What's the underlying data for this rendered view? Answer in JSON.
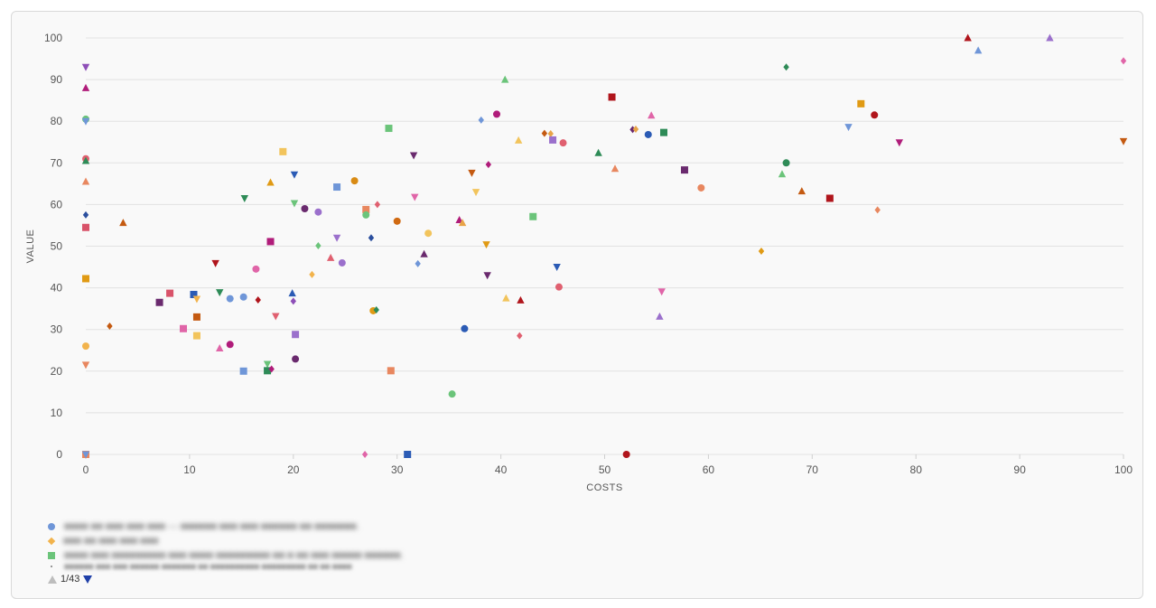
{
  "chart_data": {
    "type": "scatter",
    "xlabel": "COSTS",
    "ylabel": "VALUE",
    "xlim": [
      0,
      100
    ],
    "ylim": [
      0,
      100
    ],
    "xticks": [
      0,
      10,
      20,
      30,
      40,
      50,
      60,
      70,
      80,
      90,
      100
    ],
    "yticks": [
      0,
      10,
      20,
      30,
      40,
      50,
      60,
      70,
      80,
      90,
      100
    ],
    "grid": "horizontal",
    "legend_position": "bottom-left",
    "points": [
      {
        "x": 0,
        "y": 93,
        "shape": "triangle-down",
        "color": "#8e4fb8"
      },
      {
        "x": 0,
        "y": 88,
        "shape": "triangle-up",
        "color": "#b01c7a"
      },
      {
        "x": 0,
        "y": 80.5,
        "shape": "circle",
        "color": "#6bc47a"
      },
      {
        "x": 0,
        "y": 80,
        "shape": "triangle-down",
        "color": "#6f96d8"
      },
      {
        "x": 0,
        "y": 71,
        "shape": "circle",
        "color": "#e06070"
      },
      {
        "x": 0,
        "y": 70.5,
        "shape": "triangle-up",
        "color": "#2e8b57"
      },
      {
        "x": 0,
        "y": 65.5,
        "shape": "triangle-up",
        "color": "#e8875f"
      },
      {
        "x": 0,
        "y": 57.5,
        "shape": "diamond",
        "color": "#2b4f9e"
      },
      {
        "x": 0,
        "y": 54.5,
        "shape": "square",
        "color": "#d9536a"
      },
      {
        "x": 0,
        "y": 42.2,
        "shape": "square",
        "color": "#e09a14"
      },
      {
        "x": 0,
        "y": 26,
        "shape": "circle",
        "color": "#f2b34c"
      },
      {
        "x": 0,
        "y": 21.5,
        "shape": "triangle-down",
        "color": "#e8875f"
      },
      {
        "x": 0,
        "y": 0,
        "shape": "square",
        "color": "#e8875f"
      },
      {
        "x": 0,
        "y": 0,
        "shape": "triangle-down",
        "color": "#6f96d8"
      },
      {
        "x": 2.3,
        "y": 30.8,
        "shape": "diamond",
        "color": "#c45a11"
      },
      {
        "x": 3.6,
        "y": 55.6,
        "shape": "triangle-up",
        "color": "#c45a11"
      },
      {
        "x": 7.1,
        "y": 36.5,
        "shape": "square",
        "color": "#6a2a6e"
      },
      {
        "x": 8.1,
        "y": 38.7,
        "shape": "square",
        "color": "#d9536a"
      },
      {
        "x": 9.4,
        "y": 30.2,
        "shape": "square",
        "color": "#e065a8"
      },
      {
        "x": 10.4,
        "y": 38.4,
        "shape": "square",
        "color": "#2b5bb5"
      },
      {
        "x": 10.7,
        "y": 37.3,
        "shape": "triangle-down",
        "color": "#f2b34c"
      },
      {
        "x": 10.7,
        "y": 33,
        "shape": "square",
        "color": "#c45a11"
      },
      {
        "x": 10.7,
        "y": 28.5,
        "shape": "square",
        "color": "#f2c45c"
      },
      {
        "x": 12.5,
        "y": 45.9,
        "shape": "triangle-down",
        "color": "#b0151c"
      },
      {
        "x": 12.9,
        "y": 25.5,
        "shape": "triangle-up",
        "color": "#e065a8"
      },
      {
        "x": 12.9,
        "y": 38.9,
        "shape": "triangle-down",
        "color": "#2e8b57"
      },
      {
        "x": 13.9,
        "y": 37.4,
        "shape": "circle",
        "color": "#6f96d8"
      },
      {
        "x": 13.9,
        "y": 26.4,
        "shape": "circle",
        "color": "#b01c7a"
      },
      {
        "x": 15.2,
        "y": 37.8,
        "shape": "circle",
        "color": "#6f96d8"
      },
      {
        "x": 15.2,
        "y": 20,
        "shape": "square",
        "color": "#6f96d8"
      },
      {
        "x": 15.3,
        "y": 61.5,
        "shape": "triangle-down",
        "color": "#2e8b57"
      },
      {
        "x": 16.4,
        "y": 44.5,
        "shape": "circle",
        "color": "#e065a8"
      },
      {
        "x": 16.6,
        "y": 37.1,
        "shape": "diamond",
        "color": "#b0151c"
      },
      {
        "x": 17.5,
        "y": 21.7,
        "shape": "triangle-down",
        "color": "#6bc47a"
      },
      {
        "x": 17.5,
        "y": 20.1,
        "shape": "square",
        "color": "#2e8b57"
      },
      {
        "x": 17.9,
        "y": 20.5,
        "shape": "diamond",
        "color": "#b01c7a"
      },
      {
        "x": 17.8,
        "y": 65.3,
        "shape": "triangle-up",
        "color": "#e09a14"
      },
      {
        "x": 17.8,
        "y": 51.1,
        "shape": "square",
        "color": "#b01c7a"
      },
      {
        "x": 18.3,
        "y": 33.2,
        "shape": "triangle-down",
        "color": "#e06070"
      },
      {
        "x": 19,
        "y": 72.7,
        "shape": "square",
        "color": "#f2c45c"
      },
      {
        "x": 19.9,
        "y": 38.7,
        "shape": "triangle-up",
        "color": "#2b5bb5"
      },
      {
        "x": 20.1,
        "y": 67.2,
        "shape": "triangle-down",
        "color": "#2b5bb5"
      },
      {
        "x": 20.1,
        "y": 60.3,
        "shape": "triangle-down",
        "color": "#6bc47a"
      },
      {
        "x": 20,
        "y": 36.8,
        "shape": "diamond",
        "color": "#8e4fb8"
      },
      {
        "x": 20.2,
        "y": 28.8,
        "shape": "square",
        "color": "#9b70cc"
      },
      {
        "x": 20.2,
        "y": 22.9,
        "shape": "circle",
        "color": "#6a2a6e"
      },
      {
        "x": 21.1,
        "y": 59,
        "shape": "circle",
        "color": "#6a2a6e"
      },
      {
        "x": 21.8,
        "y": 43.2,
        "shape": "diamond",
        "color": "#f2b34c"
      },
      {
        "x": 22.4,
        "y": 58.2,
        "shape": "circle",
        "color": "#9b70cc"
      },
      {
        "x": 22.4,
        "y": 50.1,
        "shape": "diamond",
        "color": "#6bc47a"
      },
      {
        "x": 23.6,
        "y": 47.2,
        "shape": "triangle-up",
        "color": "#e06070"
      },
      {
        "x": 24.2,
        "y": 64.2,
        "shape": "square",
        "color": "#6f96d8"
      },
      {
        "x": 24.2,
        "y": 52,
        "shape": "triangle-down",
        "color": "#9b70cc"
      },
      {
        "x": 24.7,
        "y": 46,
        "shape": "circle",
        "color": "#9b70cc"
      },
      {
        "x": 25.9,
        "y": 65.7,
        "shape": "circle",
        "color": "#d98b14"
      },
      {
        "x": 26.9,
        "y": 0,
        "shape": "diamond",
        "color": "#e065a8"
      },
      {
        "x": 27,
        "y": 58.8,
        "shape": "square",
        "color": "#e8875f"
      },
      {
        "x": 27,
        "y": 57.5,
        "shape": "circle",
        "color": "#6bc47a"
      },
      {
        "x": 27.5,
        "y": 52,
        "shape": "diamond",
        "color": "#2b4f9e"
      },
      {
        "x": 27.7,
        "y": 34.5,
        "shape": "circle",
        "color": "#e09a14"
      },
      {
        "x": 28,
        "y": 34.7,
        "shape": "diamond",
        "color": "#2e8b57"
      },
      {
        "x": 28.1,
        "y": 60,
        "shape": "diamond",
        "color": "#e06070"
      },
      {
        "x": 29.2,
        "y": 78.3,
        "shape": "square",
        "color": "#6bc47a"
      },
      {
        "x": 29.4,
        "y": 20.1,
        "shape": "square",
        "color": "#e8875f"
      },
      {
        "x": 30,
        "y": 56,
        "shape": "circle",
        "color": "#d06a12"
      },
      {
        "x": 31,
        "y": 0,
        "shape": "square",
        "color": "#2b5bb5"
      },
      {
        "x": 31.6,
        "y": 71.8,
        "shape": "triangle-down",
        "color": "#6a2a6e"
      },
      {
        "x": 31.7,
        "y": 61.8,
        "shape": "triangle-down",
        "color": "#e065a8"
      },
      {
        "x": 32,
        "y": 45.8,
        "shape": "diamond",
        "color": "#6f96d8"
      },
      {
        "x": 32.6,
        "y": 48.1,
        "shape": "triangle-up",
        "color": "#6a2a6e"
      },
      {
        "x": 33,
        "y": 53.1,
        "shape": "circle",
        "color": "#f2c45c"
      },
      {
        "x": 35.3,
        "y": 14.5,
        "shape": "circle",
        "color": "#6bc47a"
      },
      {
        "x": 36,
        "y": 56.3,
        "shape": "triangle-up",
        "color": "#b01c7a"
      },
      {
        "x": 36.3,
        "y": 55.6,
        "shape": "triangle-up",
        "color": "#e8a448"
      },
      {
        "x": 36.5,
        "y": 30.2,
        "shape": "circle",
        "color": "#2b5bb5"
      },
      {
        "x": 37.2,
        "y": 67.6,
        "shape": "triangle-down",
        "color": "#c45a11"
      },
      {
        "x": 37.6,
        "y": 63,
        "shape": "triangle-down",
        "color": "#f2c45c"
      },
      {
        "x": 38.1,
        "y": 80.3,
        "shape": "diamond",
        "color": "#6f96d8"
      },
      {
        "x": 38.6,
        "y": 50.4,
        "shape": "triangle-down",
        "color": "#e09a14"
      },
      {
        "x": 38.7,
        "y": 43,
        "shape": "triangle-down",
        "color": "#6a2a6e"
      },
      {
        "x": 38.8,
        "y": 69.6,
        "shape": "diamond",
        "color": "#b01c7a"
      },
      {
        "x": 39.6,
        "y": 81.7,
        "shape": "circle",
        "color": "#b01c7a"
      },
      {
        "x": 40.4,
        "y": 90,
        "shape": "triangle-up",
        "color": "#6bc47a"
      },
      {
        "x": 40.5,
        "y": 37.5,
        "shape": "triangle-up",
        "color": "#f2c45c"
      },
      {
        "x": 41.7,
        "y": 75.4,
        "shape": "triangle-up",
        "color": "#f2c45c"
      },
      {
        "x": 41.9,
        "y": 37,
        "shape": "triangle-up",
        "color": "#b0151c"
      },
      {
        "x": 41.8,
        "y": 28.5,
        "shape": "diamond",
        "color": "#e06070"
      },
      {
        "x": 43.1,
        "y": 57.1,
        "shape": "square",
        "color": "#6bc47a"
      },
      {
        "x": 44.2,
        "y": 77.1,
        "shape": "diamond",
        "color": "#c45a11"
      },
      {
        "x": 44.8,
        "y": 77,
        "shape": "diamond",
        "color": "#e8a448"
      },
      {
        "x": 45,
        "y": 75.5,
        "shape": "square",
        "color": "#9b70cc"
      },
      {
        "x": 45.4,
        "y": 45,
        "shape": "triangle-down",
        "color": "#2b5bb5"
      },
      {
        "x": 45.6,
        "y": 40.2,
        "shape": "circle",
        "color": "#e06070"
      },
      {
        "x": 46,
        "y": 74.8,
        "shape": "circle",
        "color": "#e06070"
      },
      {
        "x": 49.4,
        "y": 72.4,
        "shape": "triangle-up",
        "color": "#2e8b57"
      },
      {
        "x": 50.7,
        "y": 85.8,
        "shape": "square",
        "color": "#b0151c"
      },
      {
        "x": 51,
        "y": 68.6,
        "shape": "triangle-up",
        "color": "#e8875f"
      },
      {
        "x": 52.1,
        "y": 0,
        "shape": "circle",
        "color": "#b0151c"
      },
      {
        "x": 52.7,
        "y": 78,
        "shape": "diamond",
        "color": "#6a2a6e"
      },
      {
        "x": 53,
        "y": 78.1,
        "shape": "diamond",
        "color": "#e8a448"
      },
      {
        "x": 54.2,
        "y": 76.8,
        "shape": "circle",
        "color": "#2b5bb5"
      },
      {
        "x": 54.5,
        "y": 81.4,
        "shape": "triangle-up",
        "color": "#e065a8"
      },
      {
        "x": 55.3,
        "y": 33.1,
        "shape": "triangle-up",
        "color": "#9b70cc"
      },
      {
        "x": 55.5,
        "y": 39.1,
        "shape": "triangle-down",
        "color": "#e065a8"
      },
      {
        "x": 55.7,
        "y": 77.3,
        "shape": "square",
        "color": "#2e8b57"
      },
      {
        "x": 57.7,
        "y": 68.3,
        "shape": "square",
        "color": "#6a2a6e"
      },
      {
        "x": 59.3,
        "y": 64,
        "shape": "circle",
        "color": "#e8875f"
      },
      {
        "x": 65.1,
        "y": 48.8,
        "shape": "diamond",
        "color": "#e09a14"
      },
      {
        "x": 67.1,
        "y": 67.3,
        "shape": "triangle-up",
        "color": "#6bc47a"
      },
      {
        "x": 67.5,
        "y": 70,
        "shape": "circle",
        "color": "#2e8b57"
      },
      {
        "x": 67.5,
        "y": 93,
        "shape": "diamond",
        "color": "#2e8b57"
      },
      {
        "x": 69,
        "y": 63.2,
        "shape": "triangle-up",
        "color": "#c45a11"
      },
      {
        "x": 71.7,
        "y": 61.5,
        "shape": "square",
        "color": "#b0151c"
      },
      {
        "x": 73.5,
        "y": 78.6,
        "shape": "triangle-down",
        "color": "#6f96d8"
      },
      {
        "x": 74.7,
        "y": 84.2,
        "shape": "square",
        "color": "#e09a14"
      },
      {
        "x": 76,
        "y": 81.5,
        "shape": "circle",
        "color": "#b0151c"
      },
      {
        "x": 76.3,
        "y": 58.7,
        "shape": "diamond",
        "color": "#e8875f"
      },
      {
        "x": 78.4,
        "y": 74.9,
        "shape": "triangle-down",
        "color": "#b01c7a"
      },
      {
        "x": 85,
        "y": 100,
        "shape": "triangle-up",
        "color": "#b0151c"
      },
      {
        "x": 86,
        "y": 97,
        "shape": "triangle-up",
        "color": "#6f96d8"
      },
      {
        "x": 92.9,
        "y": 100,
        "shape": "triangle-up",
        "color": "#9b70cc"
      },
      {
        "x": 100,
        "y": 94.5,
        "shape": "diamond",
        "color": "#e065a8"
      },
      {
        "x": 100,
        "y": 75.2,
        "shape": "triangle-down",
        "color": "#c45a11"
      }
    ]
  },
  "legend": {
    "items": [
      {
        "icon": "circle-marker-icon",
        "color": "#6f96d8",
        "label": "■■■■ ■■ ■■■ ■■■ ■■■ — ■■■■■■ ■■■ ■■■ ■■■■■■ ■■ ■■■■■■■."
      },
      {
        "icon": "diamond-marker-icon",
        "color": "#f2b34c",
        "label": "■■■ ■■ ■■■ ■■■ ■■■"
      },
      {
        "icon": "square-marker-icon",
        "color": "#6bc47a",
        "label": "■■■■ ■■■ ■■■■■■■■■ ■■■ ■■■■ ■■■■■■■■■ ■■ ■ ■■ ■■■ ■■■■■ ■■■■■■."
      },
      {
        "icon": "dot-marker-icon",
        "color": "#999999",
        "label": "■■■■■■ ■■■ ■■■ ■■■■■■ ■■■■■■■ ■■ ■■■■■■■■■■ ■■■■■■■■■ ■■ ■■ ■■■■"
      }
    ],
    "pager": {
      "text": "1/43",
      "prev_color": "#bdbdbd",
      "next_color": "#1f3fa8"
    }
  }
}
